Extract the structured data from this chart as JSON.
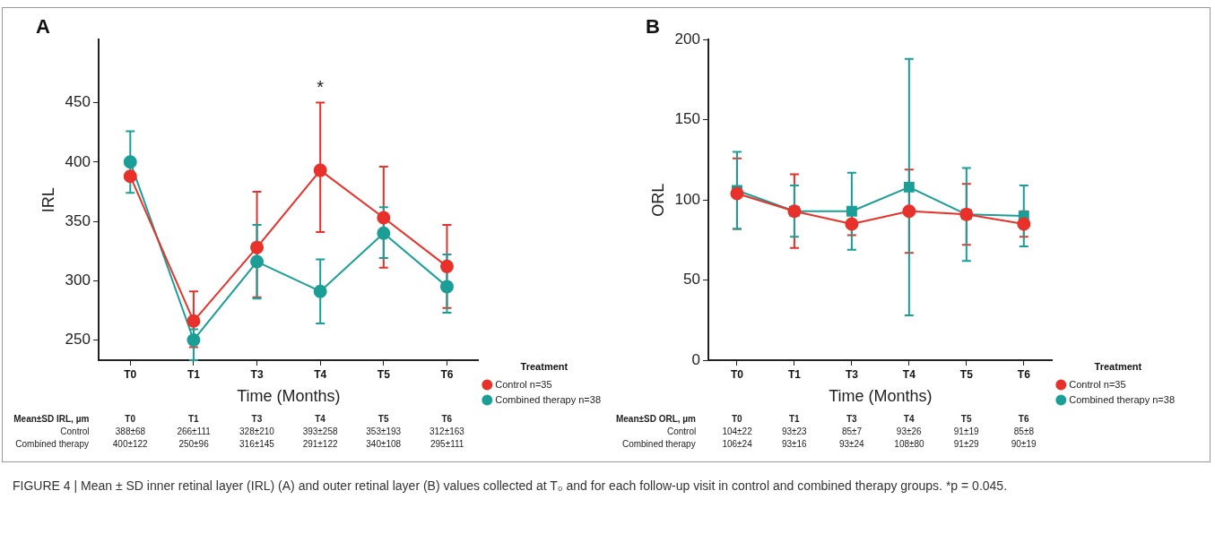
{
  "chart_data": [
    {
      "type": "line",
      "title": "A",
      "xlabel": "Time (Months)",
      "ylabel": "IRL",
      "legend_title": "Treatment",
      "legend": "right",
      "grid": false,
      "marker": "circle",
      "line_style": "solid",
      "categories": [
        "T0",
        "T1",
        "T3",
        "T4",
        "T5",
        "T6"
      ],
      "ylim": [
        233,
        503
      ],
      "yticks": [
        250,
        300,
        350,
        400,
        450
      ],
      "series": [
        {
          "name": "Control n=35",
          "color": "#e8312a",
          "values": [
            388,
            266,
            328,
            393,
            353,
            312
          ],
          "errors": [
            null,
            [
              244,
              291
            ],
            [
              286,
              375
            ],
            [
              341,
              450
            ],
            [
              311,
              396
            ],
            [
              277,
              347
            ]
          ],
          "value_labels": [
            "388±68",
            "266±111",
            "328±210",
            "393±258",
            "353±193",
            "312±163"
          ]
        },
        {
          "name": "Combined therapy n=38",
          "color": "#1a9e96",
          "values": [
            400,
            250,
            316,
            291,
            340,
            295
          ],
          "errors": [
            [
              374,
              426
            ],
            [
              233,
              259
            ],
            [
              285,
              347
            ],
            [
              264,
              318
            ],
            [
              319,
              362
            ],
            [
              273,
              322
            ]
          ],
          "value_labels": [
            "400±122",
            "250±96",
            "316±145",
            "291±122",
            "340±108",
            "295±111"
          ]
        }
      ],
      "annotations": [
        "Mean±SD IRL, µm",
        "Control",
        "Combined therapy",
        {
          "text": "*",
          "x": "T4",
          "y": 450
        }
      ]
    },
    {
      "type": "line",
      "title": "B",
      "xlabel": "Time (Months)",
      "ylabel": "ORL",
      "legend_title": "Treatment",
      "legend": "right",
      "grid": false,
      "line_style": "solid",
      "categories": [
        "T0",
        "T1",
        "T3",
        "T4",
        "T5",
        "T6"
      ],
      "ylim": [
        0,
        200
      ],
      "yticks": [
        0,
        50,
        100,
        150,
        200
      ],
      "series": [
        {
          "name": "Control n=35",
          "color": "#e8312a",
          "marker": "circle",
          "values": [
            104,
            93,
            85,
            93,
            91,
            85
          ],
          "errors": [
            22,
            23,
            7,
            26,
            19,
            8
          ],
          "value_labels": [
            "104±22",
            "93±23",
            "85±7",
            "93±26",
            "91±19",
            "85±8"
          ]
        },
        {
          "name": "Combined therapy n=38",
          "color": "#1a9e96",
          "marker": "square",
          "values": [
            106,
            93,
            93,
            108,
            91,
            90
          ],
          "errors": [
            24,
            16,
            24,
            80,
            29,
            19
          ],
          "value_labels": [
            "106±24",
            "93±16",
            "93±24",
            "108±80",
            "91±29",
            "90±19"
          ]
        }
      ],
      "annotations": [
        "Mean±SD ORL, µm",
        "Control",
        "Combined therapy",
        "FIGURE 4 | Mean ± SD inner retinal layer (IRL) (A) and outer retinal layer (B) values collected at T₀ and for each follow-up visit in control and combined therapy groups. *p = 0.045."
      ]
    }
  ]
}
